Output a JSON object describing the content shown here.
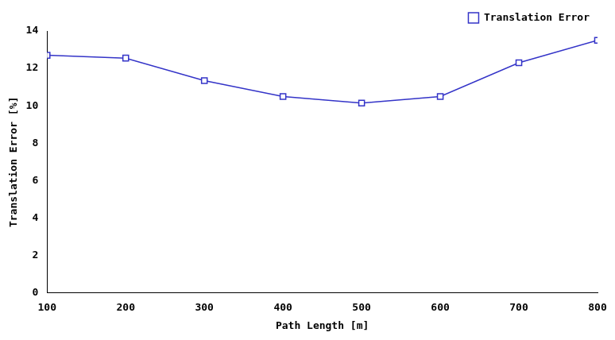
{
  "chart_data": {
    "type": "line",
    "x_label": "Path Length [m]",
    "y_label": "Translation Error [%]",
    "x": [
      100,
      200,
      300,
      400,
      500,
      600,
      700,
      800
    ],
    "series": [
      {
        "name": "Translation Error",
        "color": "#3434c8",
        "marker": "square",
        "line_style": "solid",
        "values": [
          12.7,
          12.55,
          11.35,
          10.5,
          10.15,
          10.5,
          12.3,
          13.5
        ]
      }
    ],
    "xlim": [
      100,
      800
    ],
    "xticks": [
      100,
      200,
      300,
      400,
      500,
      600,
      700,
      800
    ],
    "ylim": [
      0,
      14
    ],
    "yticks": [
      0,
      2,
      4,
      6,
      8,
      10,
      12,
      14
    ],
    "grid": false,
    "legend": "top right"
  }
}
